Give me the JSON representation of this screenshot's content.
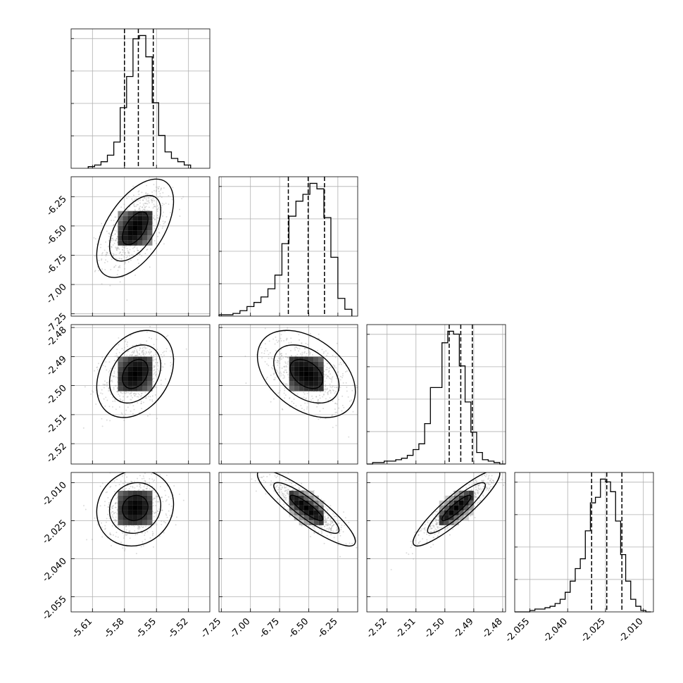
{
  "chart_data": {
    "type": "corner",
    "parameters": [
      {
        "ticks": [
          "-5.61",
          "-5.58",
          "-5.55",
          "-5.52"
        ],
        "tick_values": [
          -5.61,
          -5.58,
          -5.55,
          -5.52
        ],
        "range": [
          -5.63,
          -5.5
        ],
        "quantiles": [
          -5.58,
          -5.567,
          -5.553
        ],
        "hist_bins": [
          -5.614,
          -5.608,
          -5.602,
          -5.596,
          -5.59,
          -5.584,
          -5.578,
          -5.572,
          -5.566,
          -5.56,
          -5.554,
          -5.548,
          -5.542,
          -5.536,
          -5.53,
          -5.524,
          -5.518
        ],
        "hist_counts": [
          1,
          2,
          4,
          8,
          16,
          37,
          56,
          79,
          81,
          68,
          40,
          20,
          10,
          6,
          4,
          2
        ]
      },
      {
        "ticks": [
          "-7.25",
          "-7.00",
          "-6.75",
          "-6.50",
          "-6.25"
        ],
        "tick_values": [
          -7.25,
          -7.0,
          -6.75,
          -6.5,
          -6.25
        ],
        "range": [
          -7.27,
          -6.08
        ],
        "quantiles": [
          -6.675,
          -6.505,
          -6.365
        ],
        "hist_bins": [
          -7.27,
          -7.21,
          -7.15,
          -7.09,
          -7.03,
          -6.97,
          -6.91,
          -6.85,
          -6.79,
          -6.73,
          -6.67,
          -6.61,
          -6.55,
          -6.49,
          -6.43,
          -6.37,
          -6.31,
          -6.25,
          -6.19,
          -6.13
        ],
        "hist_counts": [
          1,
          1,
          2,
          4,
          7,
          10,
          14,
          20,
          30,
          53,
          73,
          84,
          89,
          97,
          93,
          72,
          43,
          13,
          5
        ]
      },
      {
        "ticks": [
          "-2.52",
          "-2.51",
          "-2.50",
          "-2.49",
          "-2.48"
        ],
        "tick_values": [
          -2.52,
          -2.51,
          -2.5,
          -2.49,
          -2.48
        ],
        "range": [
          -2.527,
          -2.479
        ],
        "quantiles": [
          -2.4985,
          -2.4945,
          -2.4905
        ],
        "hist_bins": [
          -2.527,
          -2.525,
          -2.523,
          -2.521,
          -2.519,
          -2.517,
          -2.515,
          -2.513,
          -2.511,
          -2.509,
          -2.507,
          -2.505,
          -2.503,
          -2.501,
          -2.499,
          -2.497,
          -2.495,
          -2.493,
          -2.491,
          -2.489,
          -2.487,
          -2.485,
          -2.483,
          -2.481,
          -2.479
        ],
        "hist_counts": [
          0,
          1,
          1,
          2,
          2,
          3,
          4,
          6,
          10,
          14,
          28,
          53,
          53,
          84,
          92,
          90,
          68,
          43,
          22,
          8,
          3,
          2,
          1,
          0
        ]
      },
      {
        "ticks": [
          "-2.055",
          "-2.040",
          "-2.025",
          "-2.010"
        ],
        "tick_values": [
          -2.055,
          -2.04,
          -2.025,
          -2.01
        ],
        "range": [
          -2.061,
          -2.006
        ],
        "quantiles": [
          -2.0305,
          -2.0245,
          -2.0185
        ],
        "hist_bins": [
          -2.061,
          -2.059,
          -2.057,
          -2.055,
          -2.053,
          -2.051,
          -2.049,
          -2.047,
          -2.045,
          -2.043,
          -2.041,
          -2.039,
          -2.037,
          -2.035,
          -2.033,
          -2.031,
          -2.029,
          -2.027,
          -2.025,
          -2.023,
          -2.021,
          -2.019,
          -2.017,
          -2.015,
          -2.013,
          -2.011,
          -2.009,
          -2.007
        ],
        "hist_counts": [
          0,
          0,
          0,
          1,
          2,
          2,
          3,
          4,
          6,
          9,
          14,
          22,
          31,
          38,
          58,
          78,
          82,
          95,
          93,
          86,
          65,
          41,
          22,
          9,
          4,
          1,
          0
        ]
      }
    ],
    "pairs": [
      {
        "row": 1,
        "col": 0,
        "center": [
          -5.57,
          -6.52
        ],
        "sigma": [
          0.012,
          0.14
        ],
        "rho": 0.55
      },
      {
        "row": 2,
        "col": 0,
        "center": [
          -5.57,
          -2.496
        ],
        "sigma": [
          0.012,
          0.005
        ],
        "rho": 0.3
      },
      {
        "row": 2,
        "col": 1,
        "center": [
          -6.52,
          -2.496
        ],
        "sigma": [
          0.14,
          0.005
        ],
        "rho": -0.4
      },
      {
        "row": 3,
        "col": 0,
        "center": [
          -5.57,
          -2.02
        ],
        "sigma": [
          0.012,
          0.005
        ],
        "rho": 0.1
      },
      {
        "row": 3,
        "col": 1,
        "center": [
          -6.52,
          -2.02
        ],
        "sigma": [
          0.14,
          0.005
        ],
        "rho": -0.88
      },
      {
        "row": 3,
        "col": 2,
        "center": [
          -2.496,
          -2.02
        ],
        "sigma": [
          0.005,
          0.005
        ],
        "rho": 0.9
      }
    ],
    "grid": true,
    "colors": {
      "ink": "#000000",
      "grid": "#b0b0b0",
      "points": "#9a9a9a"
    }
  }
}
